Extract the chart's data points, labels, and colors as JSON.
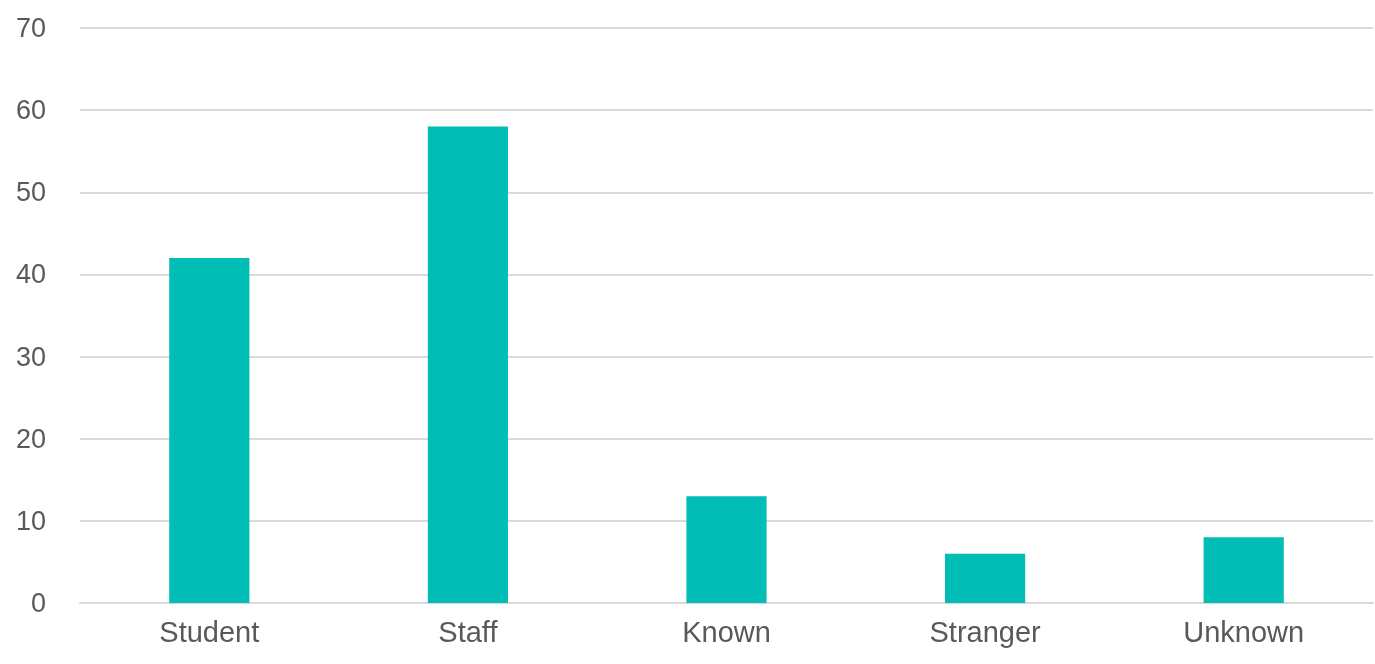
{
  "chart_data": {
    "type": "bar",
    "categories": [
      "Student",
      "Staff",
      "Known",
      "Stranger",
      "Unknown"
    ],
    "values": [
      42,
      58,
      13,
      6,
      8
    ],
    "color": "#00bdb5",
    "ylim": [
      0,
      70
    ],
    "yticks": [
      0,
      10,
      20,
      30,
      40,
      50,
      60,
      70
    ],
    "grid": "y"
  }
}
